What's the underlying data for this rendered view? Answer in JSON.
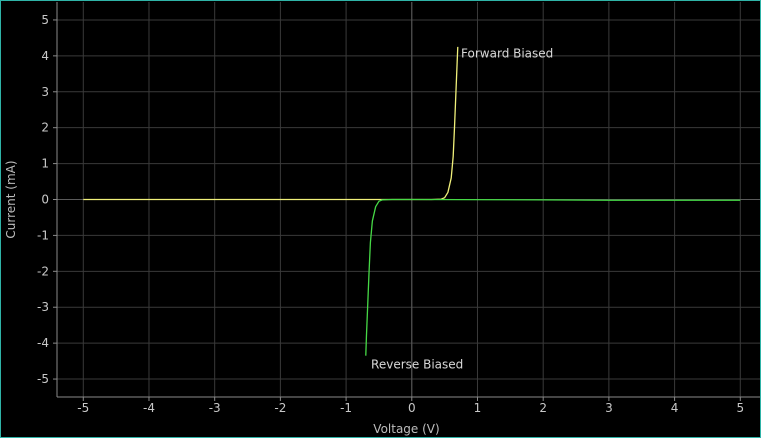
{
  "chart_data": {
    "type": "line",
    "title": "",
    "xlabel": "Voltage (V)",
    "ylabel": "Current (mA)",
    "xlim": [
      -5.4,
      5.3
    ],
    "ylim": [
      -5.5,
      5.5
    ],
    "xticks": [
      -5,
      -4,
      -3,
      -2,
      -1,
      0,
      1,
      2,
      3,
      4,
      5
    ],
    "yticks": [
      -5,
      -4,
      -3,
      -2,
      -1,
      0,
      1,
      2,
      3,
      4,
      5
    ],
    "grid": true,
    "background": "#000000",
    "grid_color": "#3a3a3a",
    "axis_color": "#8a8a8a",
    "series": [
      {
        "color": "#f0f07a",
        "x": [
          -5.0,
          -3.0,
          -1.0,
          0.0,
          0.3,
          0.45,
          0.5,
          0.55,
          0.6,
          0.63,
          0.65,
          0.67,
          0.69,
          0.7
        ],
        "y": [
          0.0,
          0.0,
          0.0,
          0.0,
          0.0,
          0.01,
          0.05,
          0.2,
          0.6,
          1.2,
          2.0,
          2.9,
          3.8,
          4.25
        ]
      },
      {
        "color": "#46d946",
        "x": [
          5.0,
          3.0,
          2.0,
          0.0,
          -0.3,
          -0.45,
          -0.5,
          -0.55,
          -0.6,
          -0.63,
          -0.65,
          -0.67,
          -0.69,
          -0.7
        ],
        "y": [
          -0.02,
          -0.02,
          -0.01,
          0.0,
          0.0,
          -0.01,
          -0.05,
          -0.2,
          -0.6,
          -1.2,
          -2.0,
          -2.9,
          -3.8,
          -4.35
        ]
      }
    ],
    "annotations": [
      {
        "text": "Forward Biased",
        "x": 0.75,
        "y": 3.95,
        "anchor": "start"
      },
      {
        "text": "Reverse Biased",
        "x": -0.62,
        "y": -4.7,
        "anchor": "start"
      }
    ]
  }
}
